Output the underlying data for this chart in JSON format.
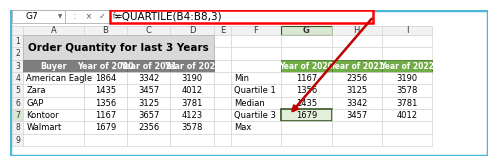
{
  "formula_bar_text": "=QUARTILE(B4:B8,3)",
  "cell_ref": "G7",
  "title_text": "Order Quantity for last 3 Years",
  "left_headers": [
    "Buyer",
    "Year of 2020",
    "Year of 2021",
    "Year of 2022"
  ],
  "left_rows": [
    [
      "American Eagle",
      "1864",
      "3342",
      "3190"
    ],
    [
      "Zara",
      "1435",
      "3457",
      "4012"
    ],
    [
      "GAP",
      "1356",
      "3125",
      "3781"
    ],
    [
      "Kontoor",
      "1167",
      "3657",
      "4123"
    ],
    [
      "Walmart",
      "1679",
      "2356",
      "3578"
    ]
  ],
  "right_rows": [
    [
      "Min",
      "1167",
      "2356",
      "3190"
    ],
    [
      "Quartile 1",
      "1356",
      "3125",
      "3578"
    ],
    [
      "Median",
      "1435",
      "3342",
      "3781"
    ],
    [
      "Quartile 3",
      "1679",
      "3457",
      "4012"
    ],
    [
      "Max",
      "",
      "",
      ""
    ]
  ],
  "outer_border_color": "#4db6d9",
  "header_bg": "#7f7f7f",
  "header_text": "#ffffff",
  "title_bg": "#d9d9d9",
  "formula_bar_border": "#ff0000",
  "right_header_bg": "#70ad47",
  "right_header_text": "#ffffff",
  "selected_cell_bg": "#e2efda",
  "selected_cell_border": "#375623",
  "col_header_selected_bg": "#d9e8d2",
  "arrow_color": "#c00000",
  "row_num_selected_bg": "#d9e8d2"
}
